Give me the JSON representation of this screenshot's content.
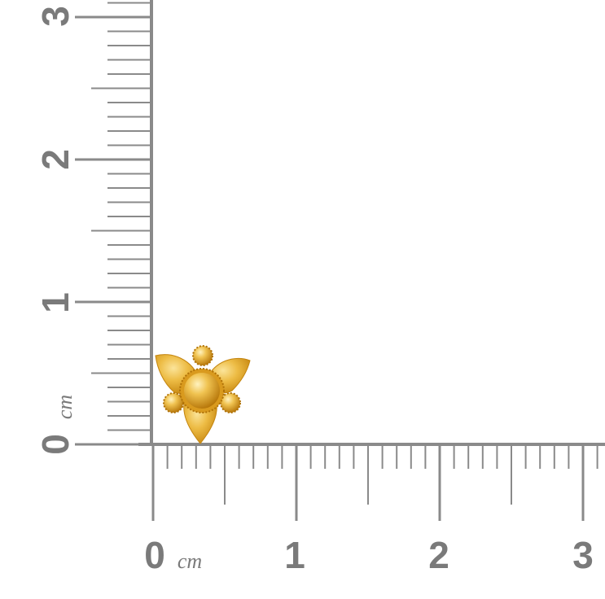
{
  "ruler": {
    "unit": "cm",
    "x_labels": [
      "0",
      "1",
      "2",
      "3"
    ],
    "y_labels": [
      "0",
      "1",
      "2",
      "3"
    ],
    "line_color": "#8a8a8a",
    "label_color": "#7a7a7a"
  },
  "product": {
    "icon": "gold-flower-earring-icon",
    "metal_color": "#e0a82a"
  }
}
